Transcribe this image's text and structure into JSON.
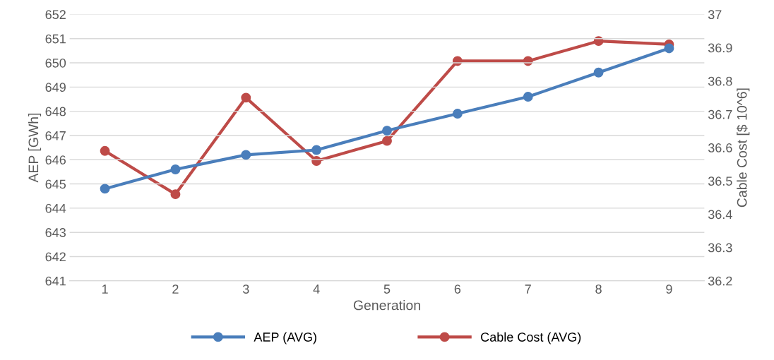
{
  "chart_data": {
    "type": "line",
    "xlabel": "Generation",
    "ylabel": "AEP [GWh]",
    "y2label": "Cable Cost [$ 10^6]",
    "categories": [
      "1",
      "2",
      "3",
      "4",
      "5",
      "6",
      "7",
      "8",
      "9"
    ],
    "series": [
      {
        "name": "AEP (AVG)",
        "color": "#4a7ebb",
        "values": [
          644.8,
          645.6,
          646.2,
          646.4,
          647.2,
          647.9,
          648.6,
          649.6,
          650.6
        ]
      },
      {
        "name": "Cable Cost (AVG)",
        "color": "#be4b48",
        "axis": "y2",
        "values": [
          36.59,
          36.46,
          36.75,
          36.56,
          36.62,
          36.86,
          36.86,
          36.92,
          36.91
        ]
      }
    ],
    "ylim": [
      641,
      652
    ],
    "yticks": [
      641,
      642,
      643,
      644,
      645,
      646,
      647,
      648,
      649,
      650,
      651,
      652
    ],
    "y2lim": [
      36.2,
      37
    ],
    "y2ticks": [
      36.2,
      36.3,
      36.4,
      36.5,
      36.6,
      36.7,
      36.8,
      36.9,
      37
    ],
    "grid": "y",
    "legend": "bottom",
    "marker": "circle",
    "line_style": "solid"
  }
}
